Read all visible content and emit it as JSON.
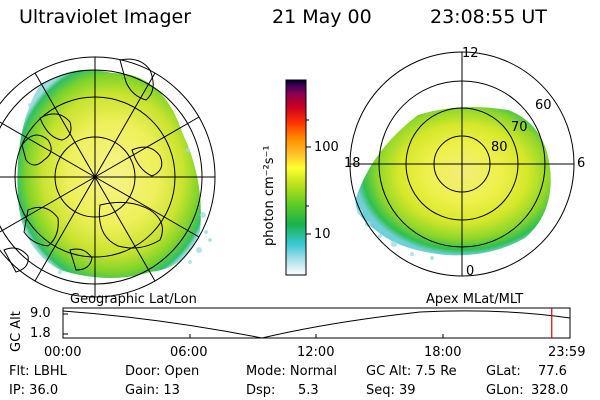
{
  "header": {
    "title": "Ultraviolet Imager",
    "date": "21 May 00",
    "time": "23:08:55 UT"
  },
  "maps": {
    "geo_label": "Geographic Lat/Lon",
    "apex_label": "Apex MLat/MLT",
    "mlt_labels": [
      "12",
      "18",
      "6",
      "0"
    ],
    "mlat_labels": [
      "60",
      "70",
      "80"
    ]
  },
  "colorbar": {
    "unit": "photon cm⁻²s⁻¹",
    "ticks": [
      "100",
      "10"
    ],
    "colors": [
      "#ffffff",
      "#a8e0ea",
      "#37c7d2",
      "#19b24d",
      "#5ccc28",
      "#b9e01b",
      "#ffff30",
      "#ffc02a",
      "#ff8c00",
      "#ff3300",
      "#cc0020",
      "#8b0050",
      "#400058",
      "#000030"
    ]
  },
  "timeline": {
    "ylabel": "GC Alt",
    "yticks": [
      "9.0",
      "1.8"
    ],
    "xticks": [
      "00:00",
      "06:00",
      "12:00",
      "18:00",
      "23:59"
    ],
    "marker_fraction": 0.964
  },
  "info": {
    "row1": {
      "filter": "Flt: LBHL",
      "door": "Door: Open",
      "mode": "Mode: Normal",
      "gc_alt": "GC Alt: 7.5 Re",
      "glat_label": "GLat:",
      "glat_value": "77.6"
    },
    "row2": {
      "ip": "IP: 36.0",
      "gain": "Gain: 13",
      "dsp_label": "Dsp:",
      "dsp_value": "5.3",
      "seq": "Seq: 39",
      "glon_label": "GLon:",
      "glon_value": "328.0"
    }
  }
}
